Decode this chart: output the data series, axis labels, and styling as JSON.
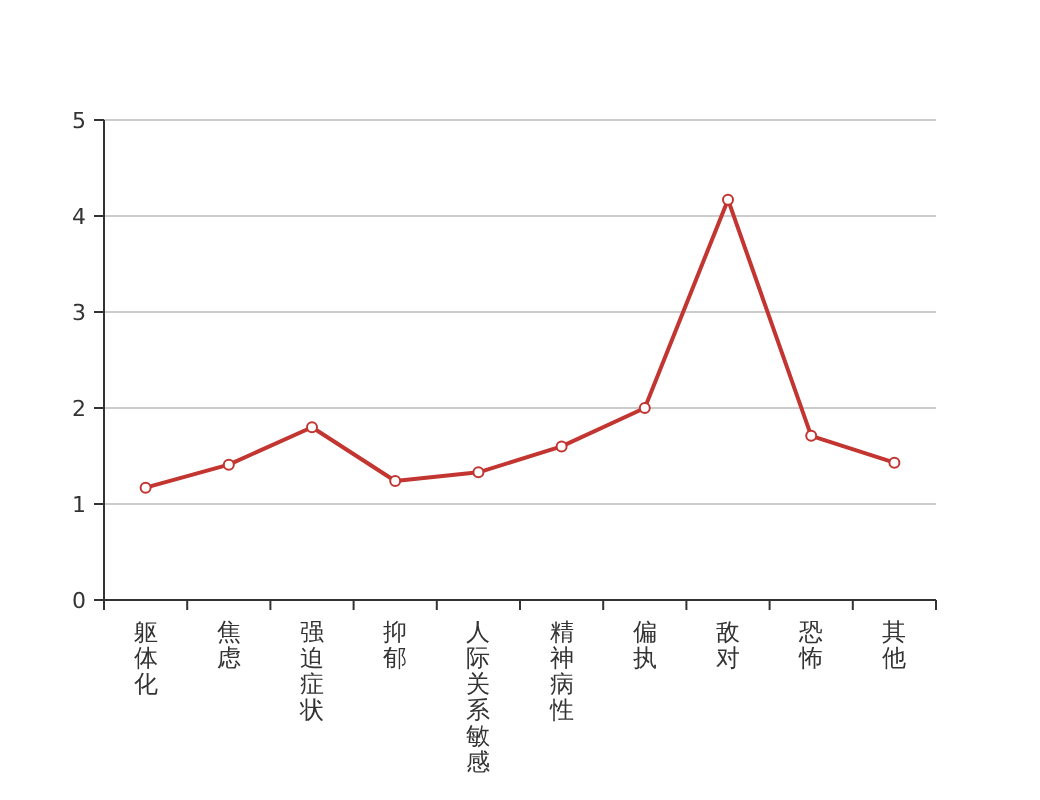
{
  "chart_data": {
    "type": "line",
    "categories": [
      "躯体化",
      "焦虑",
      "强迫症状",
      "抑郁",
      "人际关系敏感",
      "精神病性",
      "偏执",
      "敌对",
      "恐怖",
      "其他"
    ],
    "series": [
      {
        "color": "#c23531",
        "values": [
          1.17,
          1.41,
          1.8,
          1.24,
          1.33,
          1.6,
          2.0,
          4.17,
          1.71,
          1.43
        ]
      }
    ],
    "ylim": [
      0,
      5
    ],
    "yticks": [
      0,
      1,
      2,
      3,
      4,
      5
    ],
    "grid": "y",
    "marker": "circle"
  }
}
